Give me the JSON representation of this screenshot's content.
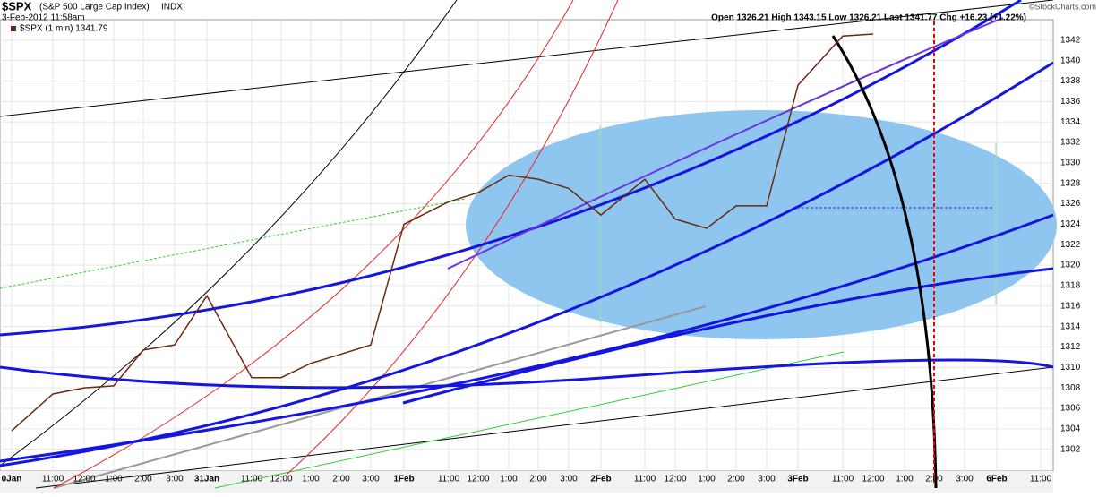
{
  "chart_data": {
    "type": "line",
    "title": "$SPX",
    "subtitle": "(S&P 500 Large Cap Index)",
    "exchange": "INDX",
    "date": "3-Feb-2012 11:58am",
    "quote": "Open 1326.21  High 1343.15  Low 1326.21  Last 1341.77  Chg +16.23 (+1.22%)",
    "credit": "©StockCharts.com",
    "categories": [
      "0Jan",
      "11:00",
      "12:00",
      "1:00",
      "2:00",
      "3:00",
      "31Jan",
      "11:00",
      "12:00",
      "1:00",
      "2:00",
      "3:00",
      "1Feb",
      "11:00",
      "12:00",
      "1:00",
      "2:00",
      "3:00",
      "2Feb",
      "11:00",
      "12:00",
      "1:00",
      "2:00",
      "3:00",
      "3Feb",
      "11:00",
      "12:00",
      "1:00",
      "2:00",
      "3:00",
      "6Feb",
      "11:00"
    ],
    "series": [
      {
        "name": "$SPX (1 min) 1341.79",
        "color": "#6b2a12",
        "values": [
          1303.8,
          1307.4,
          1308,
          1308.2,
          1311.7,
          1312.2,
          1317,
          1309,
          1309,
          1310.4,
          1311.3,
          1312.2,
          1324,
          1326.2,
          1327.1,
          1328.8,
          1328.4,
          1327.5,
          1324.9,
          1328.4,
          1324.5,
          1323.6,
          1325.8,
          1325.8,
          1337.6,
          1342.4,
          1342.6,
          null,
          null,
          null,
          null,
          null
        ]
      }
    ],
    "ylim": [
      1300,
      1344
    ],
    "yticks": [
      1302,
      1304,
      1306,
      1308,
      1310,
      1312,
      1314,
      1316,
      1318,
      1320,
      1322,
      1324,
      1326,
      1328,
      1330,
      1332,
      1334,
      1336,
      1338,
      1340,
      1342
    ],
    "grid": true
  }
}
